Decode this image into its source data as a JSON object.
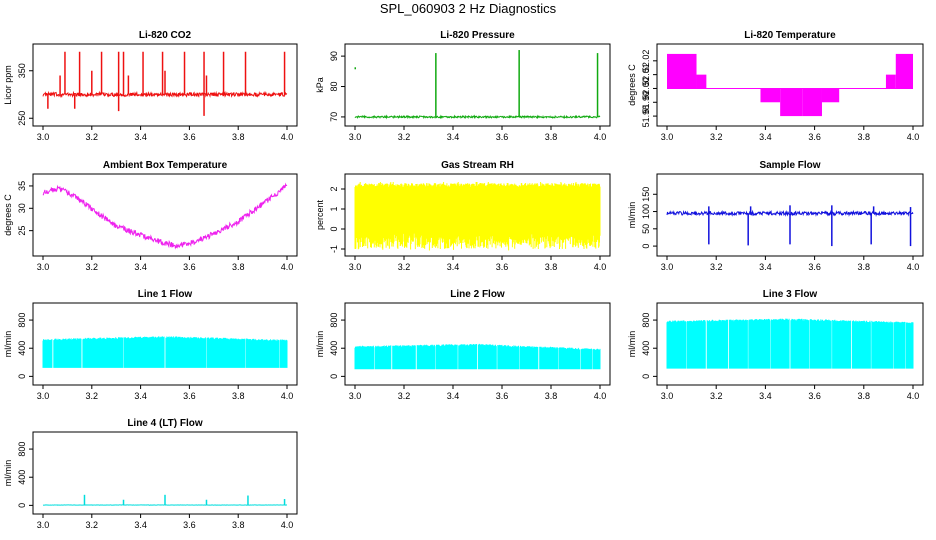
{
  "page": {
    "title": "SPL_060903  2 Hz Diagnostics"
  },
  "chart_data": [
    {
      "id": "co2",
      "type": "line",
      "title": "Li-820 CO2",
      "xlabel": "",
      "ylabel": "Licor ppm",
      "color": "#ee1111",
      "xlim": [
        3.0,
        4.0
      ],
      "ylim": [
        240,
        400
      ],
      "x_ticks": [
        "3.0",
        "3.2",
        "3.4",
        "3.6",
        "3.8",
        "4.0"
      ],
      "y_ticks": [
        250,
        350
      ],
      "series": [
        {
          "name": "CO2",
          "base": 300,
          "noise": 4,
          "spikes": [
            {
              "x": 3.07,
              "y": 340
            },
            {
              "x": 3.09,
              "y": 390
            },
            {
              "x": 3.15,
              "y": 390
            },
            {
              "x": 3.2,
              "y": 350
            },
            {
              "x": 3.24,
              "y": 390
            },
            {
              "x": 3.31,
              "y": 390
            },
            {
              "x": 3.33,
              "y": 390
            },
            {
              "x": 3.35,
              "y": 340
            },
            {
              "x": 3.41,
              "y": 390
            },
            {
              "x": 3.49,
              "y": 390
            },
            {
              "x": 3.5,
              "y": 350
            },
            {
              "x": 3.58,
              "y": 390
            },
            {
              "x": 3.66,
              "y": 390
            },
            {
              "x": 3.67,
              "y": 340
            },
            {
              "x": 3.74,
              "y": 390
            },
            {
              "x": 3.83,
              "y": 390
            },
            {
              "x": 3.99,
              "y": 390
            }
          ],
          "dips": [
            {
              "x": 3.02,
              "y": 270
            },
            {
              "x": 3.13,
              "y": 270
            },
            {
              "x": 3.31,
              "y": 265
            },
            {
              "x": 3.66,
              "y": 255
            }
          ]
        }
      ]
    },
    {
      "id": "pressure",
      "type": "line",
      "title": "Li-820 Pressure",
      "xlabel": "",
      "ylabel": "kPa",
      "color": "#11aa11",
      "xlim": [
        3.0,
        4.0
      ],
      "ylim": [
        68,
        93
      ],
      "x_ticks": [
        "3.0",
        "3.2",
        "3.4",
        "3.6",
        "3.8",
        "4.0"
      ],
      "y_ticks": [
        70,
        80,
        90
      ],
      "series": [
        {
          "name": "Pressure",
          "base": 70,
          "noise": 0.3,
          "spikes": [
            {
              "x": 3.33,
              "y": 91
            },
            {
              "x": 3.67,
              "y": 92
            },
            {
              "x": 3.99,
              "y": 91
            }
          ],
          "dips": [],
          "points": [
            {
              "x": 3.0,
              "y": 86
            }
          ]
        }
      ]
    },
    {
      "id": "li820temp",
      "type": "area",
      "title": "Li-820 Temperature",
      "xlabel": "",
      "ylabel": "degrees C",
      "color": "#ff00ff",
      "xlim": [
        3.0,
        4.0
      ],
      "ylim": [
        51.975,
        52.03
      ],
      "x_ticks": [
        "3.0",
        "3.2",
        "3.4",
        "3.6",
        "3.8",
        "4.0"
      ],
      "y_ticks": [
        "51.98",
        "51.99",
        "52.00",
        "52.01",
        "52.02"
      ],
      "series": [
        {
          "name": "Temperature",
          "base": 52.0,
          "bands": [
            {
              "x0": 3.0,
              "x1": 3.12,
              "y0": 52.0,
              "y1": 52.025
            },
            {
              "x0": 3.12,
              "x1": 3.16,
              "y0": 52.0,
              "y1": 52.01
            },
            {
              "x0": 3.38,
              "x1": 3.46,
              "y0": 51.99,
              "y1": 52.0
            },
            {
              "x0": 3.46,
              "x1": 3.55,
              "y0": 51.98,
              "y1": 52.0
            },
            {
              "x0": 3.55,
              "x1": 3.63,
              "y0": 51.98,
              "y1": 52.0
            },
            {
              "x0": 3.63,
              "x1": 3.7,
              "y0": 51.99,
              "y1": 52.0
            },
            {
              "x0": 3.89,
              "x1": 3.93,
              "y0": 52.0,
              "y1": 52.01
            },
            {
              "x0": 3.93,
              "x1": 4.0,
              "y0": 52.0,
              "y1": 52.025
            }
          ]
        }
      ]
    },
    {
      "id": "ambtemp",
      "type": "line",
      "title": "Ambient Box Temperature",
      "xlabel": "",
      "ylabel": "degrees C",
      "color": "#ee22ee",
      "xlim": [
        3.0,
        4.0
      ],
      "ylim": [
        20,
        37
      ],
      "x_ticks": [
        "3.0",
        "3.2",
        "3.4",
        "3.6",
        "3.8",
        "4.0"
      ],
      "y_ticks": [
        25,
        30,
        35
      ],
      "series": [
        {
          "name": "Temperature",
          "noise": 0.6,
          "curve": [
            {
              "x": 3.0,
              "y": 33.5
            },
            {
              "x": 3.06,
              "y": 34.5
            },
            {
              "x": 3.12,
              "y": 33
            },
            {
              "x": 3.3,
              "y": 26
            },
            {
              "x": 3.45,
              "y": 23
            },
            {
              "x": 3.55,
              "y": 21.5
            },
            {
              "x": 3.65,
              "y": 23
            },
            {
              "x": 3.8,
              "y": 27
            },
            {
              "x": 4.0,
              "y": 35
            }
          ]
        }
      ]
    },
    {
      "id": "rh",
      "type": "area",
      "title": "Gas Stream RH",
      "xlabel": "",
      "ylabel": "percent",
      "color": "#ffff00",
      "xlim": [
        3.0,
        4.0
      ],
      "ylim": [
        -1.2,
        2.6
      ],
      "x_ticks": [
        "3.0",
        "3.2",
        "3.4",
        "3.6",
        "3.8",
        "4.0"
      ],
      "y_ticks": [
        -1,
        0,
        1,
        2
      ],
      "series": [
        {
          "name": "RH",
          "upper": 2.2,
          "lower": -0.6,
          "min": -1.1,
          "max": 2.35
        }
      ]
    },
    {
      "id": "sampleflow",
      "type": "line",
      "title": "Sample Flow",
      "xlabel": "",
      "ylabel": "ml/min",
      "color": "#1111dd",
      "xlim": [
        3.0,
        4.0
      ],
      "ylim": [
        -20,
        200
      ],
      "x_ticks": [
        "3.0",
        "3.2",
        "3.4",
        "3.6",
        "3.8",
        "4.0"
      ],
      "y_ticks": [
        0,
        50,
        100,
        150
      ],
      "series": [
        {
          "name": "Flow",
          "base": 95,
          "noise": 5,
          "spikes": [
            {
              "x": 3.17,
              "y": 115
            },
            {
              "x": 3.34,
              "y": 115
            },
            {
              "x": 3.5,
              "y": 118
            },
            {
              "x": 3.67,
              "y": 118
            },
            {
              "x": 3.84,
              "y": 115
            },
            {
              "x": 3.99,
              "y": 113
            }
          ],
          "dips": [
            {
              "x": 3.17,
              "y": 5
            },
            {
              "x": 3.33,
              "y": 2
            },
            {
              "x": 3.5,
              "y": 5
            },
            {
              "x": 3.67,
              "y": 0
            },
            {
              "x": 3.83,
              "y": 5
            },
            {
              "x": 3.99,
              "y": 0
            }
          ]
        }
      ]
    },
    {
      "id": "line1",
      "type": "area",
      "title": "Line 1 Flow",
      "xlabel": "",
      "ylabel": "ml/min",
      "color": "#00ffff",
      "xlim": [
        3.0,
        4.0
      ],
      "ylim": [
        -80,
        1000
      ],
      "x_ticks": [
        "3.0",
        "3.2",
        "3.4",
        "3.6",
        "3.8",
        "4.0"
      ],
      "y_ticks": [
        0,
        400,
        800
      ],
      "series": [
        {
          "name": "Flow",
          "lower": 120,
          "upper_curve": [
            {
              "x": 3.0,
              "y": 520
            },
            {
              "x": 3.5,
              "y": 560
            },
            {
              "x": 4.0,
              "y": 510
            }
          ],
          "gaps": [
            3.04,
            3.16,
            3.33,
            3.5,
            3.67,
            3.83,
            3.97
          ]
        }
      ]
    },
    {
      "id": "line2",
      "type": "area",
      "title": "Line 2 Flow",
      "xlabel": "",
      "ylabel": "ml/min",
      "color": "#00ffff",
      "xlim": [
        3.0,
        4.0
      ],
      "ylim": [
        -80,
        1000
      ],
      "x_ticks": [
        "3.0",
        "3.2",
        "3.4",
        "3.6",
        "3.8",
        "4.0"
      ],
      "y_ticks": [
        0,
        400,
        800
      ],
      "series": [
        {
          "name": "Flow",
          "lower": 100,
          "upper_curve": [
            {
              "x": 3.0,
              "y": 420
            },
            {
              "x": 3.5,
              "y": 450
            },
            {
              "x": 4.0,
              "y": 380
            }
          ],
          "gaps": [
            3.08,
            3.15,
            3.25,
            3.33,
            3.42,
            3.5,
            3.58,
            3.67,
            3.75,
            3.83,
            3.92,
            3.97
          ]
        }
      ]
    },
    {
      "id": "line3",
      "type": "area",
      "title": "Line 3 Flow",
      "xlabel": "",
      "ylabel": "ml/min",
      "color": "#00ffff",
      "xlim": [
        3.0,
        4.0
      ],
      "ylim": [
        -80,
        1000
      ],
      "x_ticks": [
        "3.0",
        "3.2",
        "3.4",
        "3.6",
        "3.8",
        "4.0"
      ],
      "y_ticks": [
        0,
        400,
        800
      ],
      "series": [
        {
          "name": "Flow",
          "lower": 110,
          "upper_curve": [
            {
              "x": 3.0,
              "y": 780
            },
            {
              "x": 3.5,
              "y": 810
            },
            {
              "x": 4.0,
              "y": 760
            }
          ],
          "gaps": [
            3.08,
            3.16,
            3.25,
            3.33,
            3.42,
            3.5,
            3.58,
            3.67,
            3.75,
            3.83,
            3.92,
            3.97
          ]
        }
      ]
    },
    {
      "id": "line4",
      "type": "line",
      "title": "Line 4 (LT) Flow",
      "xlabel": "",
      "ylabel": "ml/min",
      "color": "#00dddd",
      "xlim": [
        3.0,
        4.0
      ],
      "ylim": [
        -80,
        1000
      ],
      "x_ticks": [
        "3.0",
        "3.2",
        "3.4",
        "3.6",
        "3.8",
        "4.0"
      ],
      "y_ticks": [
        0,
        400,
        800
      ],
      "series": [
        {
          "name": "Flow",
          "base": 5,
          "noise": 2,
          "spikes": [
            {
              "x": 3.17,
              "y": 150
            },
            {
              "x": 3.33,
              "y": 80
            },
            {
              "x": 3.5,
              "y": 150
            },
            {
              "x": 3.67,
              "y": 80
            },
            {
              "x": 3.84,
              "y": 140
            },
            {
              "x": 3.99,
              "y": 90
            }
          ],
          "dips": []
        }
      ]
    }
  ]
}
